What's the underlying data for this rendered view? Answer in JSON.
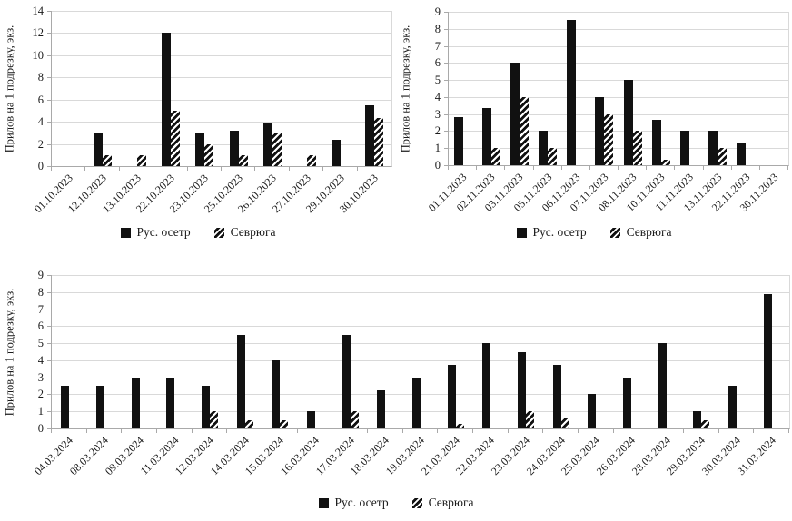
{
  "figure": {
    "ylabel": "Прилов на 1 подрезку, экз.",
    "legend": [
      "Рус. осетр",
      "Севрюга"
    ]
  },
  "colors": {
    "bar_solid": "#111111",
    "hatch_stripe": "#111111",
    "gridline": "#d9d9d9",
    "axis": "#a9a9a9",
    "text": "#1a1a1a",
    "background": "#ffffff"
  },
  "chart_data": [
    {
      "type": "bar",
      "ylabel": "Прилов на 1 подрезку, экз.",
      "xlabel": "",
      "ylim": [
        0,
        14
      ],
      "ytick_step": 2,
      "grid": true,
      "legend_position": "bottom",
      "categories": [
        "01.10.2023",
        "12.10.2023",
        "13.10.2023",
        "22.10.2023",
        "23.10.2023",
        "25.10.2023",
        "26.10.2023",
        "27.10.2023",
        "29.10.2023",
        "30.10.2023"
      ],
      "series": [
        {
          "name": "Рус. осетр",
          "pattern": "solid",
          "values": [
            0,
            3,
            0,
            12,
            3,
            3.2,
            3.9,
            0,
            2.4,
            5.5
          ]
        },
        {
          "name": "Севрюга",
          "pattern": "hatched-diagonal",
          "values": [
            0,
            1,
            1,
            5,
            2,
            1,
            3,
            1,
            0,
            4.3
          ]
        }
      ]
    },
    {
      "type": "bar",
      "ylabel": "Прилов на 1 подрезку, экз.",
      "xlabel": "",
      "ylim": [
        0,
        9
      ],
      "ytick_step": 1,
      "grid": true,
      "legend_position": "bottom",
      "categories": [
        "01.11.2023",
        "02.11.2023",
        "03.11.2023",
        "05.11.2023",
        "06.11.2023",
        "07.11.2023",
        "08.11.2023",
        "10.11.2023",
        "11.11.2023",
        "13.11.2023",
        "22.11.2023",
        "30.11.2023"
      ],
      "series": [
        {
          "name": "Рус. осетр",
          "pattern": "solid",
          "values": [
            2.8,
            3.35,
            6,
            2,
            8.5,
            4,
            5,
            2.65,
            2,
            2,
            1.3,
            0
          ]
        },
        {
          "name": "Севрюга",
          "pattern": "hatched-diagonal",
          "values": [
            0,
            1,
            4,
            1,
            0,
            3,
            2,
            0.3,
            0,
            1,
            0,
            0
          ]
        }
      ]
    },
    {
      "type": "bar",
      "ylabel": "Прилов на 1 подрезку, экз.",
      "xlabel": "",
      "ylim": [
        0,
        9
      ],
      "ytick_step": 1,
      "grid": true,
      "legend_position": "bottom",
      "categories": [
        "04.03.2024",
        "08.03.2024",
        "09.03.2024",
        "11.03.2024",
        "12.03.2024",
        "14.03.2024",
        "15.03.2024",
        "16.03.2024",
        "17.03.2024",
        "18.03.2024",
        "19.03.2024",
        "21.03.2024",
        "22.03.2024",
        "23.03.2024",
        "24.03.2024",
        "25.03.2024",
        "26.03.2024",
        "28.03.2024",
        "29.03.2024",
        "30.03.2024",
        "31.03.2024"
      ],
      "series": [
        {
          "name": "Рус. осетр",
          "pattern": "solid",
          "values": [
            2.5,
            2.5,
            3,
            3,
            2.5,
            5.5,
            4,
            1,
            5.5,
            2.25,
            3,
            3.75,
            5,
            4.5,
            3.75,
            2,
            3,
            5,
            1,
            2.5,
            7.9
          ]
        },
        {
          "name": "Севрюга",
          "pattern": "hatched-diagonal",
          "values": [
            0,
            0,
            0,
            0,
            1,
            0.5,
            0.5,
            0,
            1,
            0,
            0,
            0.25,
            0,
            1,
            0.6,
            0,
            0,
            0,
            0.5,
            0,
            0
          ]
        }
      ]
    }
  ]
}
